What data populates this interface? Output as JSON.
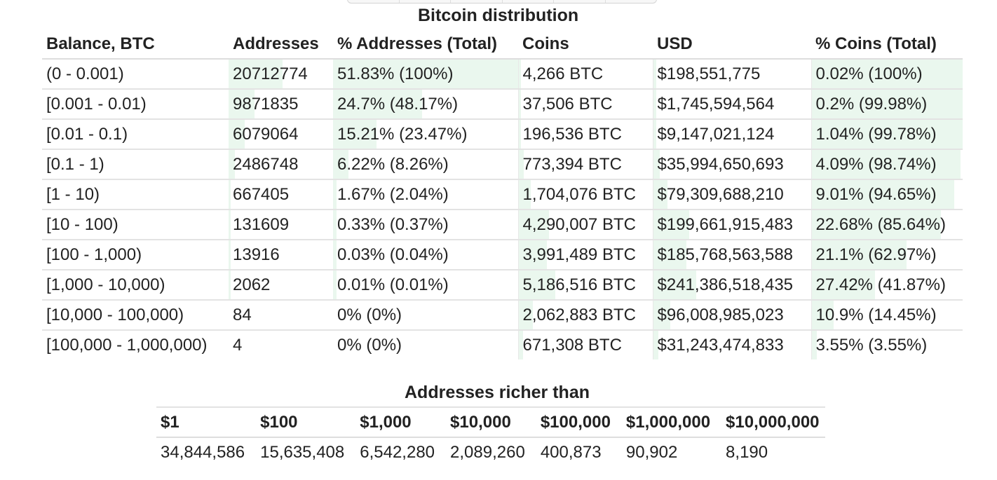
{
  "distribution": {
    "title": "Bitcoin distribution",
    "columns": [
      "Balance, BTC",
      "Addresses",
      "% Addresses (Total)",
      "Coins",
      "USD",
      "% Coins (Total)"
    ],
    "rows": [
      {
        "balance": "(0 - 0.001)",
        "addresses": "20712774",
        "pct_addresses": "51.83% (100%)",
        "coins": "4,266 BTC",
        "usd": "$198,551,775",
        "pct_coins": "0.02% (100%)"
      },
      {
        "balance": "[0.001 - 0.01)",
        "addresses": "9871835",
        "pct_addresses": "24.7% (48.17%)",
        "coins": "37,506 BTC",
        "usd": "$1,745,594,564",
        "pct_coins": "0.2% (99.98%)"
      },
      {
        "balance": "[0.01 - 0.1)",
        "addresses": "6079064",
        "pct_addresses": "15.21% (23.47%)",
        "coins": "196,536 BTC",
        "usd": "$9,147,021,124",
        "pct_coins": "1.04% (99.78%)"
      },
      {
        "balance": "[0.1 - 1)",
        "addresses": "2486748",
        "pct_addresses": "6.22% (8.26%)",
        "coins": "773,394 BTC",
        "usd": "$35,994,650,693",
        "pct_coins": "4.09% (98.74%)"
      },
      {
        "balance": "[1 - 10)",
        "addresses": "667405",
        "pct_addresses": "1.67% (2.04%)",
        "coins": "1,704,076 BTC",
        "usd": "$79,309,688,210",
        "pct_coins": "9.01% (94.65%)"
      },
      {
        "balance": "[10 - 100)",
        "addresses": "131609",
        "pct_addresses": "0.33% (0.37%)",
        "coins": "4,290,007 BTC",
        "usd": "$199,661,915,483",
        "pct_coins": "22.68% (85.64%)"
      },
      {
        "balance": "[100 - 1,000)",
        "addresses": "13916",
        "pct_addresses": "0.03% (0.04%)",
        "coins": "3,991,489 BTC",
        "usd": "$185,768,563,588",
        "pct_coins": "21.1% (62.97%)"
      },
      {
        "balance": "[1,000 - 10,000)",
        "addresses": "2062",
        "pct_addresses": "0.01% (0.01%)",
        "coins": "5,186,516 BTC",
        "usd": "$241,386,518,435",
        "pct_coins": "27.42% (41.87%)"
      },
      {
        "balance": "[10,000 - 100,000)",
        "addresses": "84",
        "pct_addresses": "0% (0%)",
        "coins": "2,062,883 BTC",
        "usd": "$96,008,985,023",
        "pct_coins": "10.9% (14.45%)"
      },
      {
        "balance": "[100,000 - 1,000,000)",
        "addresses": "4",
        "pct_addresses": "0% (0%)",
        "coins": "671,308 BTC",
        "usd": "$31,243,474,833",
        "pct_coins": "3.55% (3.55%)"
      }
    ],
    "bar_fractions": {
      "addresses": [
        0.5183,
        0.247,
        0.1521,
        0.0622,
        0.0167,
        0.0033,
        0.0003,
        0.0001,
        0,
        0
      ],
      "pct_addresses_total": [
        1.0,
        0.4817,
        0.2347,
        0.0826,
        0.0204,
        0.0037,
        0.0004,
        0.0001,
        0,
        0
      ],
      "coins": [
        0.0002,
        0.002,
        0.0104,
        0.0409,
        0.0901,
        0.2268,
        0.211,
        0.2742,
        0.109,
        0.0355
      ],
      "pct_coins_total": [
        1.0,
        0.9998,
        0.9978,
        0.9874,
        0.9465,
        0.8564,
        0.6297,
        0.4187,
        0.1445,
        0.0355
      ]
    }
  },
  "richer": {
    "title": "Addresses richer than",
    "columns": [
      "$1",
      "$100",
      "$1,000",
      "$10,000",
      "$100,000",
      "$1,000,000",
      "$10,000,000"
    ],
    "values": [
      "34,844,586",
      "15,635,408",
      "6,542,280",
      "2,089,260",
      "400,873",
      "90,902",
      "8,190"
    ]
  },
  "colors": {
    "bar_fill": "#eaf7ee",
    "row_border": "#e3e3e3"
  }
}
